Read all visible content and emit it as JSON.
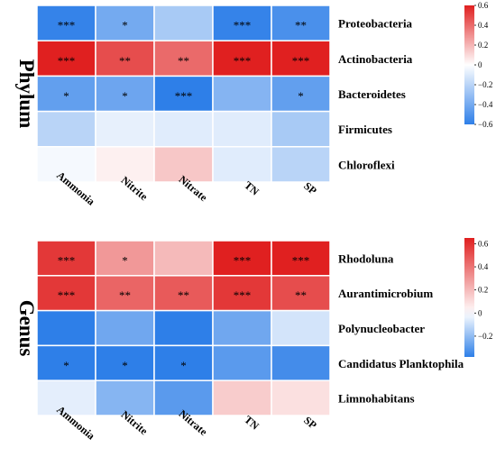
{
  "chart_data": [
    {
      "type": "heatmap",
      "group_label": "Phylum",
      "columns": [
        "Ammonia",
        "Nitrite",
        "Nitrate",
        "TN",
        "SP"
      ],
      "rows": [
        "Proteobacteria",
        "Actinobacteria",
        "Bacteroidetes",
        "Firmicutes",
        "Chloroflexi"
      ],
      "values": [
        [
          -0.58,
          -0.4,
          -0.25,
          -0.58,
          -0.52
        ],
        [
          0.68,
          0.48,
          0.4,
          0.64,
          0.6
        ],
        [
          -0.45,
          -0.42,
          -0.7,
          -0.35,
          -0.45
        ],
        [
          -0.2,
          -0.07,
          -0.09,
          -0.09,
          -0.25
        ],
        [
          -0.03,
          0.04,
          0.15,
          -0.09,
          -0.2
        ]
      ],
      "significance": [
        [
          "***",
          "*",
          "",
          "***",
          "**"
        ],
        [
          "***",
          "**",
          "**",
          "***",
          "***"
        ],
        [
          "*",
          "*",
          "***",
          "",
          "*"
        ],
        [
          "",
          "",
          "",
          "",
          ""
        ],
        [
          "",
          "",
          "",
          "",
          ""
        ]
      ],
      "colorbar": {
        "min": -0.6,
        "max": 0.6,
        "ticks": [
          "0.6",
          "0.4",
          "0.2",
          "0",
          "−0.2",
          "−0.4",
          "−0.6"
        ]
      },
      "colors": {
        "negative": "#2e7fe8",
        "neutral": "#ffffff",
        "positive": "#e02020"
      }
    },
    {
      "type": "heatmap",
      "group_label": "Genus",
      "columns": [
        "Ammonia",
        "Nitrite",
        "Nitrate",
        "TN",
        "SP"
      ],
      "rows": [
        "Rhodoluna",
        "Aurantimicrobium",
        "Polynucleobacter",
        "Candidatus Planktophila",
        "Limnohabitans"
      ],
      "values": [
        [
          0.58,
          0.3,
          0.2,
          0.65,
          0.65
        ],
        [
          0.58,
          0.45,
          0.48,
          0.58,
          0.52
        ],
        [
          -0.38,
          -0.26,
          -0.38,
          -0.26,
          -0.08
        ],
        [
          -0.38,
          -0.38,
          -0.38,
          -0.3,
          -0.34
        ],
        [
          -0.05,
          -0.22,
          -0.3,
          0.15,
          0.09
        ]
      ],
      "significance": [
        [
          "***",
          "*",
          "",
          "***",
          "***"
        ],
        [
          "***",
          "**",
          "**",
          "***",
          "**"
        ],
        [
          "",
          "",
          "",
          "",
          ""
        ],
        [
          "*",
          "*",
          "*",
          "",
          ""
        ],
        [
          "",
          "",
          "",
          "",
          ""
        ]
      ],
      "colorbar": {
        "min": -0.38,
        "max": 0.65,
        "ticks": [
          "0.6",
          "0.4",
          "0.2",
          "0",
          "−0.2"
        ]
      },
      "colors": {
        "negative": "#2e7fe8",
        "neutral": "#ffffff",
        "positive": "#e02020"
      }
    }
  ]
}
